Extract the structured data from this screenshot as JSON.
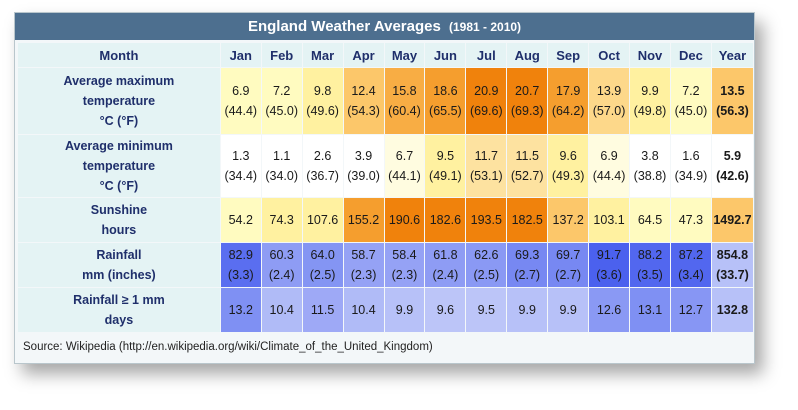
{
  "title": "England Weather Averages",
  "title_range": "(1981 - 2010)",
  "source": "Source: Wikipedia (http://en.wikipedia.org/wiki/Climate_of_the_United_Kingdom)",
  "header": [
    "Month",
    "Jan",
    "Feb",
    "Mar",
    "Apr",
    "May",
    "Jun",
    "Jul",
    "Aug",
    "Sep",
    "Oct",
    "Nov",
    "Dec",
    "Year"
  ],
  "rows": [
    {
      "label": [
        "Average maximum",
        "temperature",
        "°C (°F)"
      ],
      "cells": [
        [
          "6.9",
          "(44.4)"
        ],
        [
          "7.2",
          "(45.0)"
        ],
        [
          "9.8",
          "(49.6)"
        ],
        [
          "12.4",
          "(54.3)"
        ],
        [
          "15.8",
          "(60.4)"
        ],
        [
          "18.6",
          "(65.5)"
        ],
        [
          "20.9",
          "(69.6)"
        ],
        [
          "20.7",
          "(69.3)"
        ],
        [
          "17.9",
          "(64.2)"
        ],
        [
          "13.9",
          "(57.0)"
        ],
        [
          "9.9",
          "(49.8)"
        ],
        [
          "7.2",
          "(45.0)"
        ],
        [
          "13.5",
          "(56.3)"
        ]
      ],
      "colors": [
        "#fffbc0",
        "#fffbc0",
        "#fff1a0",
        "#fcc76a",
        "#f8ad44",
        "#f59e2e",
        "#f0820c",
        "#f0820c",
        "#f59e2e",
        "#fdd88a",
        "#fff1a0",
        "#fffbc0",
        "#fcc76a"
      ]
    },
    {
      "label": [
        "Average minimum",
        "temperature",
        "°C (°F)"
      ],
      "cells": [
        [
          "1.3",
          "(34.4)"
        ],
        [
          "1.1",
          "(34.0)"
        ],
        [
          "2.6",
          "(36.7)"
        ],
        [
          "3.9",
          "(39.0)"
        ],
        [
          "6.7",
          "(44.1)"
        ],
        [
          "9.5",
          "(49.1)"
        ],
        [
          "11.7",
          "(53.1)"
        ],
        [
          "11.5",
          "(52.7)"
        ],
        [
          "9.6",
          "(49.3)"
        ],
        [
          "6.9",
          "(44.4)"
        ],
        [
          "3.8",
          "(38.8)"
        ],
        [
          "1.6",
          "(34.9)"
        ],
        [
          "5.9",
          "(42.6)"
        ]
      ],
      "colors": [
        "#ffffff",
        "#ffffff",
        "#ffffff",
        "#ffffff",
        "#fffce0",
        "#fff1a0",
        "#fde2a0",
        "#fde2a0",
        "#fff1a0",
        "#fffce0",
        "#ffffff",
        "#ffffff",
        "#ffffff"
      ]
    },
    {
      "label": [
        "Sunshine",
        "hours"
      ],
      "cells": [
        [
          "54.2"
        ],
        [
          "74.3"
        ],
        [
          "107.6"
        ],
        [
          "155.2"
        ],
        [
          "190.6"
        ],
        [
          "182.6"
        ],
        [
          "193.5"
        ],
        [
          "182.5"
        ],
        [
          "137.2"
        ],
        [
          "103.1"
        ],
        [
          "64.5"
        ],
        [
          "47.3"
        ],
        [
          "1492.7"
        ]
      ],
      "colors": [
        "#fffbc0",
        "#fff1a0",
        "#fff1a0",
        "#f59e2e",
        "#f0820c",
        "#f0820c",
        "#f0820c",
        "#f0820c",
        "#fcc76a",
        "#fff1a0",
        "#fffbc0",
        "#fffbc0",
        "#fcc76a"
      ]
    },
    {
      "label": [
        "Rainfall",
        "mm (inches)"
      ],
      "cells": [
        [
          "82.9",
          "(3.3)"
        ],
        [
          "60.3",
          "(2.4)"
        ],
        [
          "64.0",
          "(2.5)"
        ],
        [
          "58.7",
          "(2.3)"
        ],
        [
          "58.4",
          "(2.3)"
        ],
        [
          "61.8",
          "(2.4)"
        ],
        [
          "62.6",
          "(2.5)"
        ],
        [
          "69.3",
          "(2.7)"
        ],
        [
          "69.7",
          "(2.7)"
        ],
        [
          "91.7",
          "(3.6)"
        ],
        [
          "88.2",
          "(3.5)"
        ],
        [
          "87.2",
          "(3.4)"
        ],
        [
          "854.8",
          "(33.7)"
        ]
      ],
      "colors": [
        "#5a6ef0",
        "#8e9cf4",
        "#8495f3",
        "#95a2f5",
        "#95a2f5",
        "#8e9cf4",
        "#8a99f4",
        "#7788f2",
        "#7788f2",
        "#4b61ee",
        "#5267ef",
        "#5267ef",
        "#b7c1f8"
      ]
    },
    {
      "label": [
        "Rainfall ≥ 1 mm",
        "days"
      ],
      "cells": [
        [
          "13.2"
        ],
        [
          "10.4"
        ],
        [
          "11.5"
        ],
        [
          "10.4"
        ],
        [
          "9.9"
        ],
        [
          "9.6"
        ],
        [
          "9.5"
        ],
        [
          "9.9"
        ],
        [
          "9.9"
        ],
        [
          "12.6"
        ],
        [
          "13.1"
        ],
        [
          "12.7"
        ],
        [
          "132.8"
        ]
      ],
      "colors": [
        "#7f90f3",
        "#b0bbf7",
        "#9ea9f6",
        "#b0bbf7",
        "#b7c1f8",
        "#bcc5f8",
        "#bcc5f8",
        "#b7c1f8",
        "#b7c1f8",
        "#8a99f4",
        "#7f90f3",
        "#8796f4",
        "#b7c1f8"
      ]
    }
  ],
  "chart_data": {
    "type": "table",
    "title": "England Weather Averages (1981 - 2010)",
    "columns": [
      "Jan",
      "Feb",
      "Mar",
      "Apr",
      "May",
      "Jun",
      "Jul",
      "Aug",
      "Sep",
      "Oct",
      "Nov",
      "Dec",
      "Year"
    ],
    "series": [
      {
        "name": "Average maximum temperature °C",
        "values": [
          6.9,
          7.2,
          9.8,
          12.4,
          15.8,
          18.6,
          20.9,
          20.7,
          17.9,
          13.9,
          9.9,
          7.2,
          13.5
        ]
      },
      {
        "name": "Average maximum temperature °F",
        "values": [
          44.4,
          45.0,
          49.6,
          54.3,
          60.4,
          65.5,
          69.6,
          69.3,
          64.2,
          57.0,
          49.8,
          45.0,
          56.3
        ]
      },
      {
        "name": "Average minimum temperature °C",
        "values": [
          1.3,
          1.1,
          2.6,
          3.9,
          6.7,
          9.5,
          11.7,
          11.5,
          9.6,
          6.9,
          3.8,
          1.6,
          5.9
        ]
      },
      {
        "name": "Average minimum temperature °F",
        "values": [
          34.4,
          34.0,
          36.7,
          39.0,
          44.1,
          49.1,
          53.1,
          52.7,
          49.3,
          44.4,
          38.8,
          34.9,
          42.6
        ]
      },
      {
        "name": "Sunshine hours",
        "values": [
          54.2,
          74.3,
          107.6,
          155.2,
          190.6,
          182.6,
          193.5,
          182.5,
          137.2,
          103.1,
          64.5,
          47.3,
          1492.7
        ]
      },
      {
        "name": "Rainfall mm",
        "values": [
          82.9,
          60.3,
          64.0,
          58.7,
          58.4,
          61.8,
          62.6,
          69.3,
          69.7,
          91.7,
          88.2,
          87.2,
          854.8
        ]
      },
      {
        "name": "Rainfall inches",
        "values": [
          3.3,
          2.4,
          2.5,
          2.3,
          2.3,
          2.4,
          2.5,
          2.7,
          2.7,
          3.6,
          3.5,
          3.4,
          33.7
        ]
      },
      {
        "name": "Rainfall ≥ 1 mm days",
        "values": [
          13.2,
          10.4,
          11.5,
          10.4,
          9.9,
          9.6,
          9.5,
          9.9,
          9.9,
          12.6,
          13.1,
          12.7,
          132.8
        ]
      }
    ]
  }
}
